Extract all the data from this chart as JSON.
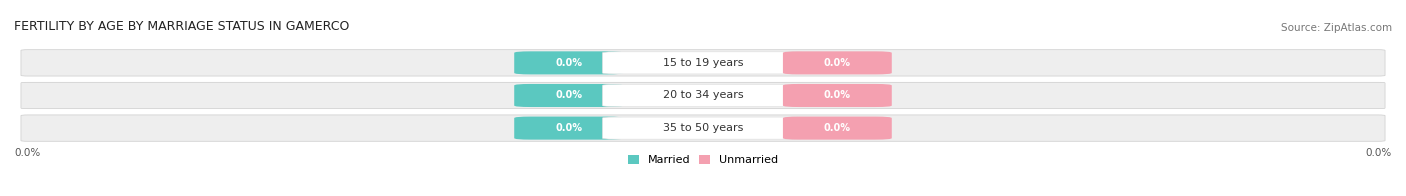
{
  "title": "FERTILITY BY AGE BY MARRIAGE STATUS IN GAMERCO",
  "source": "Source: ZipAtlas.com",
  "categories": [
    "15 to 19 years",
    "20 to 34 years",
    "35 to 50 years"
  ],
  "married_values": [
    "0.0%",
    "0.0%",
    "0.0%"
  ],
  "unmarried_values": [
    "0.0%",
    "0.0%",
    "0.0%"
  ],
  "married_color": "#5bc8c0",
  "unmarried_color": "#f4a0b0",
  "bar_bg_color": "#eeeeee",
  "legend_married": "Married",
  "legend_unmarried": "Unmarried",
  "title_fontsize": 9,
  "source_fontsize": 7.5,
  "value_fontsize": 7,
  "cat_fontsize": 8,
  "legend_fontsize": 8,
  "axis_label_fontsize": 7.5,
  "left_label": "0.0%",
  "right_label": "0.0%",
  "background_color": "#ffffff"
}
